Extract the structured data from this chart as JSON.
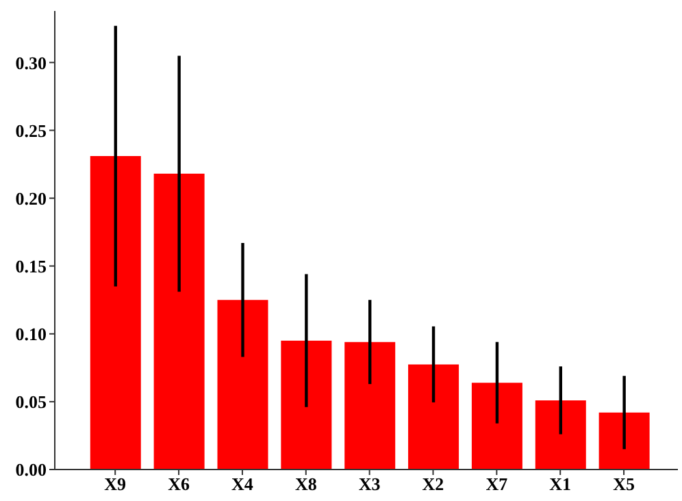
{
  "chart_data": {
    "type": "bar",
    "categories": [
      "X9",
      "X6",
      "X4",
      "X8",
      "X3",
      "X2",
      "X7",
      "X1",
      "X5"
    ],
    "values": [
      0.231,
      0.218,
      0.125,
      0.095,
      0.094,
      0.0775,
      0.064,
      0.051,
      0.042
    ],
    "errors": [
      0.096,
      0.087,
      0.042,
      0.049,
      0.031,
      0.028,
      0.03,
      0.025,
      0.027
    ],
    "color": "#ff0000",
    "ylim": [
      0,
      0.338
    ],
    "yticks": [
      {
        "value": 0,
        "label": "0.00"
      },
      {
        "value": 0.05,
        "label": "0.05"
      },
      {
        "value": 0.1,
        "label": "0.10"
      },
      {
        "value": 0.15,
        "label": "0.15"
      },
      {
        "value": 0.2,
        "label": "0.20"
      },
      {
        "value": 0.25,
        "label": "0.25"
      },
      {
        "value": 0.3,
        "label": "0.30"
      }
    ],
    "grid": false,
    "legend": false
  }
}
